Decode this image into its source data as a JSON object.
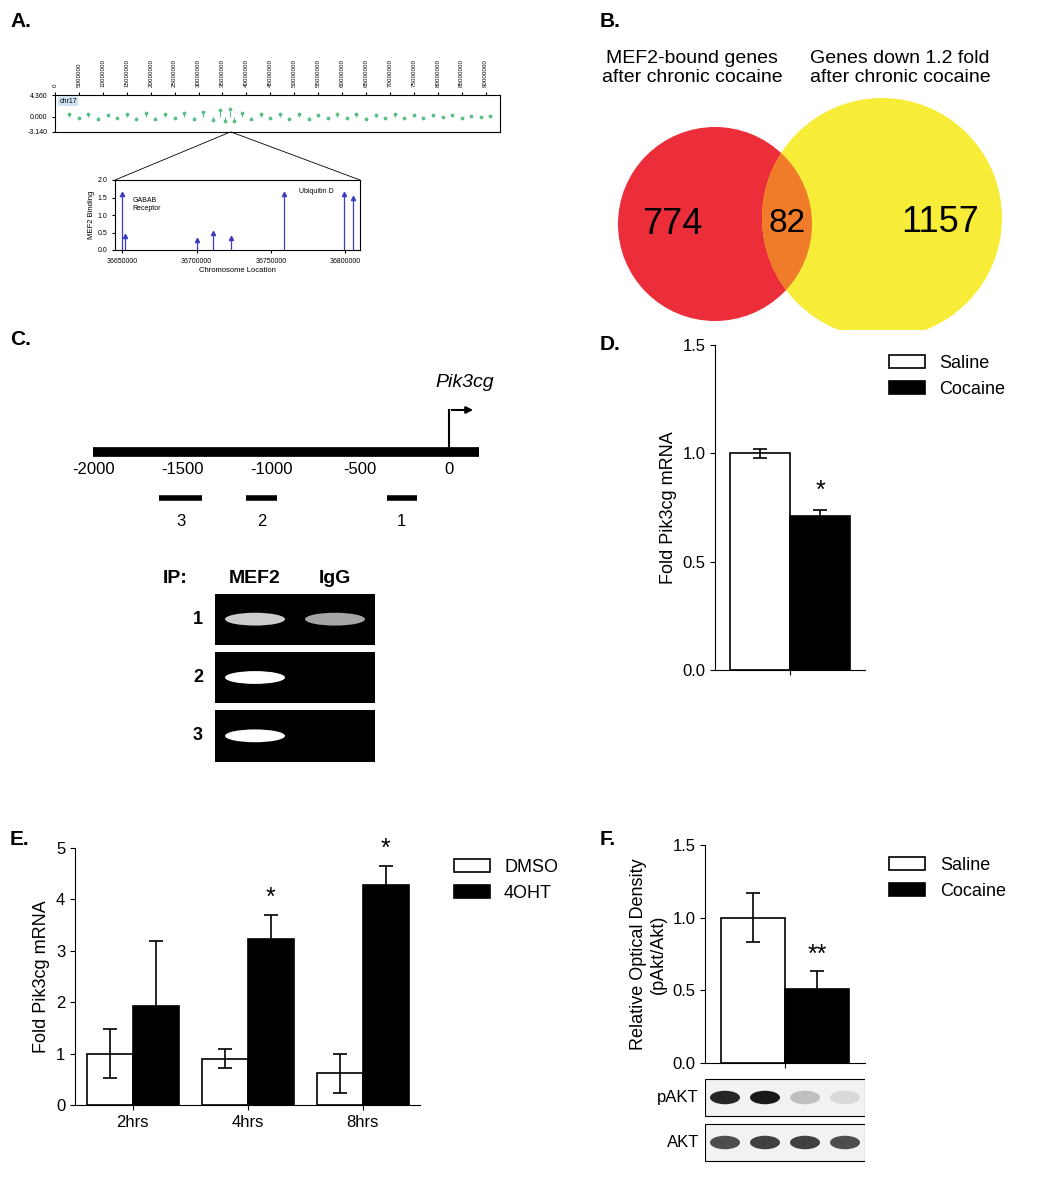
{
  "chart_data": [
    {
      "panel": "A.",
      "type": "scatter",
      "name": "chr17",
      "color": "#5cbf8a",
      "marker": "circle",
      "x": [
        3000000,
        5000000,
        7000000,
        9000000,
        11000000,
        13000000,
        15000000,
        17000000,
        19000000,
        21000000,
        23000000,
        25000000,
        27000000,
        29000000,
        31000000,
        33000000,
        34500000,
        35500000,
        36500000,
        37500000,
        39000000,
        41000000,
        43000000,
        45000000,
        47000000,
        49000000,
        51000000,
        53000000,
        55000000,
        57000000,
        59000000,
        61000000,
        63000000,
        65000000,
        67000000,
        69000000,
        71000000,
        73000000,
        75000000,
        77000000,
        79000000,
        81000000,
        83000000,
        85000000,
        87000000,
        89000000,
        91000000
      ],
      "values": [
        0.5,
        -0.4,
        0.6,
        -0.5,
        0.4,
        -0.3,
        0.5,
        -0.6,
        0.7,
        -0.5,
        0.6,
        -0.4,
        0.8,
        -0.6,
        1.0,
        -0.8,
        1.4,
        -1.0,
        1.6,
        -0.9,
        0.7,
        -0.5,
        0.6,
        -0.4,
        0.5,
        -0.6,
        0.6,
        -0.5,
        0.4,
        -0.3,
        0.5,
        -0.4,
        0.6,
        -0.5,
        0.4,
        -0.3,
        0.5,
        -0.4,
        0.3,
        -0.3,
        0.4,
        -0.2,
        0.3,
        -0.3,
        0.2,
        -0.2,
        0.2
      ],
      "xlim": [
        0,
        93000000
      ],
      "xticks": [
        0,
        5000000,
        10000000,
        15000000,
        20000000,
        25000000,
        30000000,
        35000000,
        40000000,
        45000000,
        50000000,
        55000000,
        60000000,
        65000000,
        70000000,
        75000000,
        80000000,
        85000000,
        90000000
      ],
      "ylim": [
        -3.14,
        4.36
      ],
      "yticks": [
        {
          "value": 4.36,
          "label": "4.360"
        },
        {
          "value": 0,
          "label": "0.000"
        },
        {
          "value": -3.14,
          "label": "-3.140"
        }
      ],
      "zoom": [
        36645000,
        36810000
      ]
    },
    {
      "type": "stem",
      "color": "#3a3fbf",
      "marker": "triangle",
      "x": [
        36650000,
        36652000,
        36700000,
        36711000,
        36723000,
        36759000,
        36799000,
        36805000
      ],
      "values": [
        1.6,
        0.4,
        0.3,
        0.5,
        0.35,
        1.6,
        1.6,
        1.5
      ],
      "xlim": [
        36645000,
        36810000
      ],
      "xticks": [
        36650000,
        36700000,
        36750000,
        36800000
      ],
      "ylim": [
        0,
        2.0
      ],
      "yticks": [
        {
          "value": 0,
          "label": "0.0"
        },
        {
          "value": 0.5,
          "label": "0.5"
        },
        {
          "value": 1.0,
          "label": "1.0"
        },
        {
          "value": 1.5,
          "label": "1.5"
        },
        {
          "value": 2.0,
          "label": "2.0"
        }
      ],
      "x_label": "Chromosome Location",
      "y_label": "MEF2 Binding",
      "annotations": [
        "GABAB\nReceptor",
        "Ubiquitin D"
      ]
    },
    {
      "panel": "B.",
      "type": "venn",
      "sets": [
        {
          "label": "MEF2-bound genes\nafter chronic cocaine",
          "value": 774,
          "color": "#ec2d3a"
        },
        {
          "label": "Genes down 1.2 fold\nafter chronic cocaine",
          "value": 1157,
          "color": "#f7ec37"
        }
      ],
      "overlap": {
        "value": 82,
        "color": "#f07c2a"
      }
    },
    {
      "panel": "C.",
      "type": "diagram",
      "gene": "Pik3cg",
      "tss": 0,
      "span": [
        -2000,
        170
      ],
      "ticks": [
        -2000,
        -1500,
        -1000,
        -500,
        0
      ],
      "amplicons": [
        {
          "label": "1",
          "start": -350,
          "end": -180
        },
        {
          "label": "2",
          "start": -1140,
          "end": -965
        },
        {
          "label": "3",
          "start": -1630,
          "end": -1390
        }
      ],
      "gel": {
        "title": "IP:",
        "lanes": [
          "MEF2",
          "IgG"
        ],
        "rows": [
          {
            "label": "1",
            "bands": [
              0.8,
              0.65
            ]
          },
          {
            "label": "2",
            "bands": [
              1.0,
              0
            ]
          },
          {
            "label": "3",
            "bands": [
              1.0,
              0
            ]
          }
        ]
      }
    },
    {
      "panel": "D.",
      "type": "bar",
      "categories": [
        null
      ],
      "series": [
        {
          "name": "Saline",
          "color": "#ffffff",
          "values": [
            1.0
          ],
          "errors": [
            0.02
          ]
        },
        {
          "name": "Cocaine",
          "color": "#000000",
          "values": [
            0.71
          ],
          "errors": [
            0.03
          ]
        }
      ],
      "y_label": "Fold Pik3cg mRNA",
      "ylim": [
        0,
        1.5
      ],
      "yticks": [
        {
          "value": 0,
          "label": "0.0"
        },
        {
          "value": 0.5,
          "label": "0.5"
        },
        {
          "value": 1.0,
          "label": "1.0"
        },
        {
          "value": 1.5,
          "label": "1.5"
        }
      ],
      "legend": "upper left",
      "annotations": [
        {
          "series": "Cocaine",
          "category": 0,
          "text": "*"
        }
      ]
    },
    {
      "panel": "E.",
      "type": "bar",
      "categories": [
        "2hrs",
        "4hrs",
        "8hrs"
      ],
      "series": [
        {
          "name": "DMSO",
          "color": "#ffffff",
          "values": [
            1.0,
            0.9,
            0.62
          ],
          "errors": [
            0.48,
            0.18,
            0.38
          ]
        },
        {
          "name": "4OHT",
          "color": "#000000",
          "values": [
            1.93,
            3.22,
            4.28
          ],
          "errors": [
            1.27,
            0.48,
            0.37
          ]
        }
      ],
      "y_label": "Fold Pik3cg mRNA",
      "ylim": [
        0,
        5
      ],
      "yticks": [
        0,
        1,
        2,
        3,
        4,
        5
      ],
      "legend": "upper left",
      "annotations": [
        {
          "series": "4OHT",
          "category": 1,
          "text": "*"
        },
        {
          "series": "4OHT",
          "category": 2,
          "text": "*"
        }
      ]
    },
    {
      "panel": "F.",
      "type": "bar",
      "categories": [
        null
      ],
      "series": [
        {
          "name": "Saline",
          "color": "#ffffff",
          "values": [
            1.0
          ],
          "errors": [
            0.17
          ]
        },
        {
          "name": "Cocaine",
          "color": "#000000",
          "values": [
            0.51
          ],
          "errors": [
            0.12
          ]
        }
      ],
      "y_label": "Relative Optical Density\n(pAkt/Akt)",
      "ylim": [
        0,
        1.5
      ],
      "yticks": [
        {
          "value": 0,
          "label": "0.0"
        },
        {
          "value": 0.5,
          "label": "0.5"
        },
        {
          "value": 1.0,
          "label": "1.0"
        },
        {
          "value": 1.5,
          "label": "1.5"
        }
      ],
      "legend": "upper left",
      "annotations": [
        {
          "series": "Cocaine",
          "category": 0,
          "text": "**"
        }
      ],
      "blot": {
        "rows": [
          {
            "label": "pAKT",
            "bands": [
              0.85,
              0.9,
              0.25,
              0.15
            ]
          },
          {
            "label": "AKT",
            "bands": [
              0.7,
              0.75,
              0.75,
              0.7
            ]
          }
        ]
      }
    }
  ]
}
